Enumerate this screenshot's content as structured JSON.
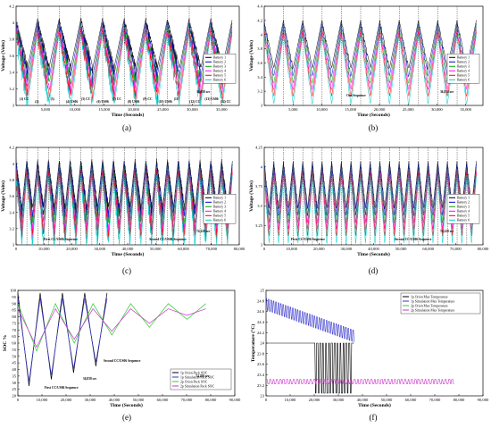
{
  "chart_data": [
    {
      "id": "a",
      "caption": "(a)",
      "type": "line",
      "xlabel": "Time (Seconds)",
      "ylabel": "Voltage (Volts)",
      "xlim": [
        0,
        38000
      ],
      "ylim": [
        3,
        4.2
      ],
      "x_ticks": [
        "5,000",
        "10,000",
        "15,000",
        "20,000",
        "25,000",
        "30,000",
        "35,000"
      ],
      "x_tick_values": [
        5000,
        10000,
        15000,
        20000,
        25000,
        30000,
        35000
      ],
      "y_ticks": [
        "3",
        "3.2",
        "3.4",
        "3.6",
        "3.8",
        "4",
        "4.2"
      ],
      "y_tick_values": [
        3,
        3.2,
        3.4,
        3.6,
        3.8,
        4,
        4.2
      ],
      "legend_position": "right",
      "series": [
        {
          "name": "Battery 1",
          "color": "#000000"
        },
        {
          "name": "Battery 2",
          "color": "#0000cc"
        },
        {
          "name": "Battery 3",
          "color": "#00aa00"
        },
        {
          "name": "Battery 4",
          "color": "#ff00ff"
        },
        {
          "name": "Battery 5",
          "color": "#ff0000"
        },
        {
          "name": "Battery 6",
          "color": "#00cccc"
        }
      ],
      "segment_labels": [
        "(1) CC",
        "(2)",
        "(3)",
        "(4) US06",
        "(5) CC",
        "(6) US06",
        "(7) CC",
        "(8) US06",
        "(9) CC",
        "(10) US06",
        "(11)",
        "(12) CC",
        "(13) US06",
        "(14) CC"
      ],
      "annotation": "36,838 sec",
      "mode": "sawtooth",
      "cycles": 10
    },
    {
      "id": "b",
      "caption": "(b)",
      "type": "line",
      "xlabel": "Time (Seconds)",
      "ylabel": "Voltage (Volts)",
      "xlim": [
        0,
        38000
      ],
      "ylim": [
        3,
        4.4
      ],
      "x_ticks": [
        "5,000",
        "10,000",
        "15,000",
        "20,000",
        "25,000",
        "30,000",
        "35,000"
      ],
      "x_tick_values": [
        5000,
        10000,
        15000,
        20000,
        25000,
        30000,
        35000
      ],
      "y_ticks": [
        "3",
        "3.2",
        "3.4",
        "3.6",
        "3.8",
        "4",
        "4.2",
        "4.4"
      ],
      "y_tick_values": [
        3,
        3.2,
        3.4,
        3.6,
        3.8,
        4,
        4.2,
        4.4
      ],
      "legend_position": "right",
      "series": [
        {
          "name": "Battery 1",
          "color": "#000000"
        },
        {
          "name": "Battery 2",
          "color": "#0000cc"
        },
        {
          "name": "Battery 3",
          "color": "#00aa00"
        },
        {
          "name": "Battery 4",
          "color": "#ff00ff"
        },
        {
          "name": "Battery 5",
          "color": "#ff0000"
        },
        {
          "name": "Battery 6",
          "color": "#00cccc"
        }
      ],
      "sequence_label": "One Sequence",
      "annotation": "36,838 sec",
      "mode": "zigzag",
      "cycles": 11
    },
    {
      "id": "c",
      "caption": "(c)",
      "type": "line",
      "xlabel": "Time (Seconds)",
      "ylabel": "Voltage (Volts)",
      "xlim": [
        0,
        80000
      ],
      "ylim": [
        3,
        4.2
      ],
      "x_ticks": [
        "0",
        "10,000",
        "20,000",
        "30,000",
        "40,000",
        "50,000",
        "60,000",
        "70,000",
        "80,000"
      ],
      "x_tick_values": [
        0,
        10000,
        20000,
        30000,
        40000,
        50000,
        60000,
        70000,
        80000
      ],
      "y_ticks": [
        "3",
        "3.2",
        "3.4",
        "3.6",
        "3.8",
        "4",
        "4.2"
      ],
      "y_tick_values": [
        3,
        3.2,
        3.4,
        3.6,
        3.8,
        4,
        4.2
      ],
      "legend_position": "right",
      "series": [
        {
          "name": "Battery 1",
          "color": "#000000"
        },
        {
          "name": "Battery 2",
          "color": "#0000cc"
        },
        {
          "name": "Battery 3",
          "color": "#00aa00"
        },
        {
          "name": "Battery 4",
          "color": "#ff00ff"
        },
        {
          "name": "Battery 5",
          "color": "#ff0000"
        },
        {
          "name": "Battery 6",
          "color": "#00cccc"
        }
      ],
      "sequence_labels": [
        "First CC/US06 Sequence",
        "Second CC/US06 Sequence"
      ],
      "annotation": "74,220 sec",
      "mode": "sawtooth",
      "cycles": 20
    },
    {
      "id": "d",
      "caption": "(d)",
      "type": "line",
      "xlabel": "Time (Seconds)",
      "ylabel": "Voltage (Volts)",
      "xlim": [
        0,
        80000
      ],
      "ylim": [
        3,
        4.25
      ],
      "x_ticks": [
        "0",
        "10,000",
        "20,000",
        "30,000",
        "40,000",
        "50,000",
        "60,000",
        "70,000",
        "80,000"
      ],
      "x_tick_values": [
        0,
        10000,
        20000,
        30000,
        40000,
        50000,
        60000,
        70000,
        80000
      ],
      "y_ticks": [
        "3",
        "3.25",
        "3.5",
        "3.75",
        "4",
        "4.25"
      ],
      "y_tick_values": [
        3,
        3.25,
        3.5,
        3.75,
        4,
        4.25
      ],
      "legend_position": "right",
      "series": [
        {
          "name": "Battery 1",
          "color": "#000000"
        },
        {
          "name": "Battery 2",
          "color": "#0000cc"
        },
        {
          "name": "Battery 3",
          "color": "#00aa00"
        },
        {
          "name": "Battery 4",
          "color": "#ff00ff"
        },
        {
          "name": "Battery 5",
          "color": "#ff0000"
        },
        {
          "name": "Battery 6",
          "color": "#00cccc"
        }
      ],
      "sequence_labels": [
        "First CC/US06 Sequence",
        "Second CC/US06 Sequence"
      ],
      "annotation": "74,220 sec",
      "mode": "zigzag",
      "cycles": 22
    },
    {
      "id": "e",
      "caption": "(e)",
      "type": "line",
      "xlabel": "Time (Seconds)",
      "ylabel": "SOC %",
      "xlim": [
        0,
        90000
      ],
      "ylim": [
        20,
        100
      ],
      "x_ticks": [
        "0",
        "10,000",
        "20,000",
        "30,000",
        "40,000",
        "50,000",
        "60,000",
        "70,000",
        "80,000",
        "90,000"
      ],
      "x_tick_values": [
        0,
        10000,
        20000,
        30000,
        40000,
        50000,
        60000,
        70000,
        80000,
        90000
      ],
      "y_ticks": [
        "20",
        "25",
        "30",
        "35",
        "40",
        "45",
        "50",
        "55",
        "60",
        "65",
        "70",
        "75",
        "80",
        "85",
        "90",
        "95",
        "100"
      ],
      "y_tick_values": [
        20,
        25,
        30,
        35,
        40,
        45,
        50,
        55,
        60,
        65,
        70,
        75,
        80,
        85,
        90,
        95,
        100
      ],
      "legend_position": "bottom-right",
      "series": [
        {
          "name": "1p Orion Pack SOC",
          "color": "#000000"
        },
        {
          "name": "1p Simulation Pack SOC",
          "color": "#3333cc"
        },
        {
          "name": "2p Orion Pack SOC",
          "color": "#33cc33"
        },
        {
          "name": "2p Simulation Pack SOC",
          "color": "#cc33cc"
        }
      ],
      "sequence_labels": [
        "First CC/US06 Sequence",
        "Second CC/US06 Sequence"
      ],
      "annotations": [
        "36,838 sec",
        "74,220 sec"
      ]
    },
    {
      "id": "f",
      "caption": "(f)",
      "type": "line",
      "xlabel": "Time (Seconds)",
      "ylabel": "Temperature (°C)",
      "xlim": [
        0,
        90000
      ],
      "ylim": [
        23,
        25
      ],
      "x_ticks": [
        "0",
        "10,000",
        "20,000",
        "30,000",
        "40,000",
        "50,000",
        "60,000",
        "70,000",
        "80,000",
        "90,000"
      ],
      "x_tick_values": [
        0,
        10000,
        20000,
        30000,
        40000,
        50000,
        60000,
        70000,
        80000,
        90000
      ],
      "y_ticks": [
        "23",
        "23.2",
        "23.4",
        "23.6",
        "23.8",
        "24",
        "24.2",
        "24.4",
        "24.6",
        "24.8",
        "25"
      ],
      "y_tick_values": [
        23,
        23.2,
        23.4,
        23.6,
        23.8,
        24,
        24.2,
        24.4,
        24.6,
        24.8,
        25
      ],
      "legend_position": "top-right",
      "series": [
        {
          "name": "1p Orion Max Temperature",
          "color": "#000000"
        },
        {
          "name": "1p Simulation Max Temperature",
          "color": "#3333cc"
        },
        {
          "name": "2p Orion Max Temperature",
          "color": "#33cc33"
        },
        {
          "name": "2p Simulation Max Temperature",
          "color": "#cc33cc"
        }
      ]
    }
  ]
}
